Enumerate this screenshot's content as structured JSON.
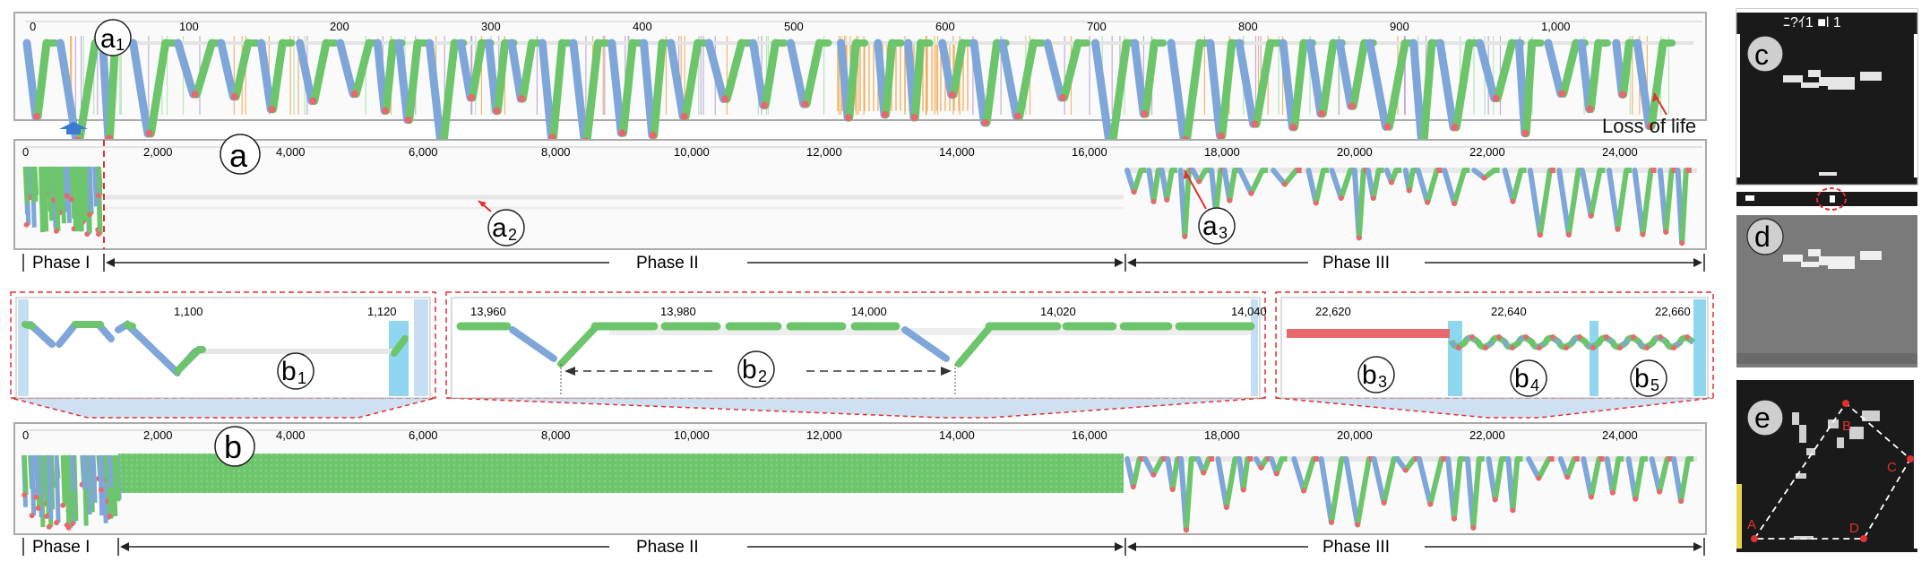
{
  "panels": {
    "a1": {
      "label_main": "a",
      "label_sub": "1",
      "ticks": [
        "0",
        "100",
        "200",
        "300",
        "400",
        "500",
        "600",
        "700",
        "800",
        "900",
        "1,000"
      ],
      "annotation": "Loss of life"
    },
    "a": {
      "label": "a",
      "ticks": [
        "0",
        "2,000",
        "4,000",
        "6,000",
        "8,000",
        "10,000",
        "12,000",
        "14,000",
        "16,000",
        "18,000",
        "20,000",
        "22,000",
        "24,000"
      ],
      "a2_main": "a",
      "a2_sub": "2",
      "a3_main": "a",
      "a3_sub": "3"
    },
    "b1": {
      "label_main": "b",
      "label_sub": "1",
      "ticks": [
        "1,100",
        "1,120"
      ]
    },
    "b2": {
      "label_main": "b",
      "label_sub": "2",
      "ticks": [
        "13,960",
        "13,980",
        "14,000",
        "14,020",
        "14,040"
      ]
    },
    "b345": {
      "b3_main": "b",
      "b3_sub": "3",
      "b4_main": "b",
      "b4_sub": "4",
      "b5_main": "b",
      "b5_sub": "5",
      "ticks": [
        "22,620",
        "22,640",
        "22,660"
      ]
    },
    "b": {
      "label": "b",
      "ticks": [
        "0",
        "2,000",
        "4,000",
        "6,000",
        "8,000",
        "10,000",
        "12,000",
        "14,000",
        "16,000",
        "18,000",
        "20,000",
        "22,000",
        "24,000"
      ]
    },
    "c": {
      "label": "c",
      "score": "ﾆ?ｲ1 ■l 1"
    },
    "d": {
      "label": "d"
    },
    "e": {
      "label": "e",
      "points": [
        "A",
        "B",
        "C",
        "D"
      ]
    }
  },
  "phases": [
    "Phase I",
    "Phase II",
    "Phase III"
  ],
  "colors": {
    "green": "#6cc56b",
    "blue": "#7ea6d8",
    "red": "#e8696b",
    "orange": "#f2a64a",
    "purple": "#b79ad4",
    "lightblue": "#a8dcf2",
    "dashed_red": "#e03030"
  }
}
